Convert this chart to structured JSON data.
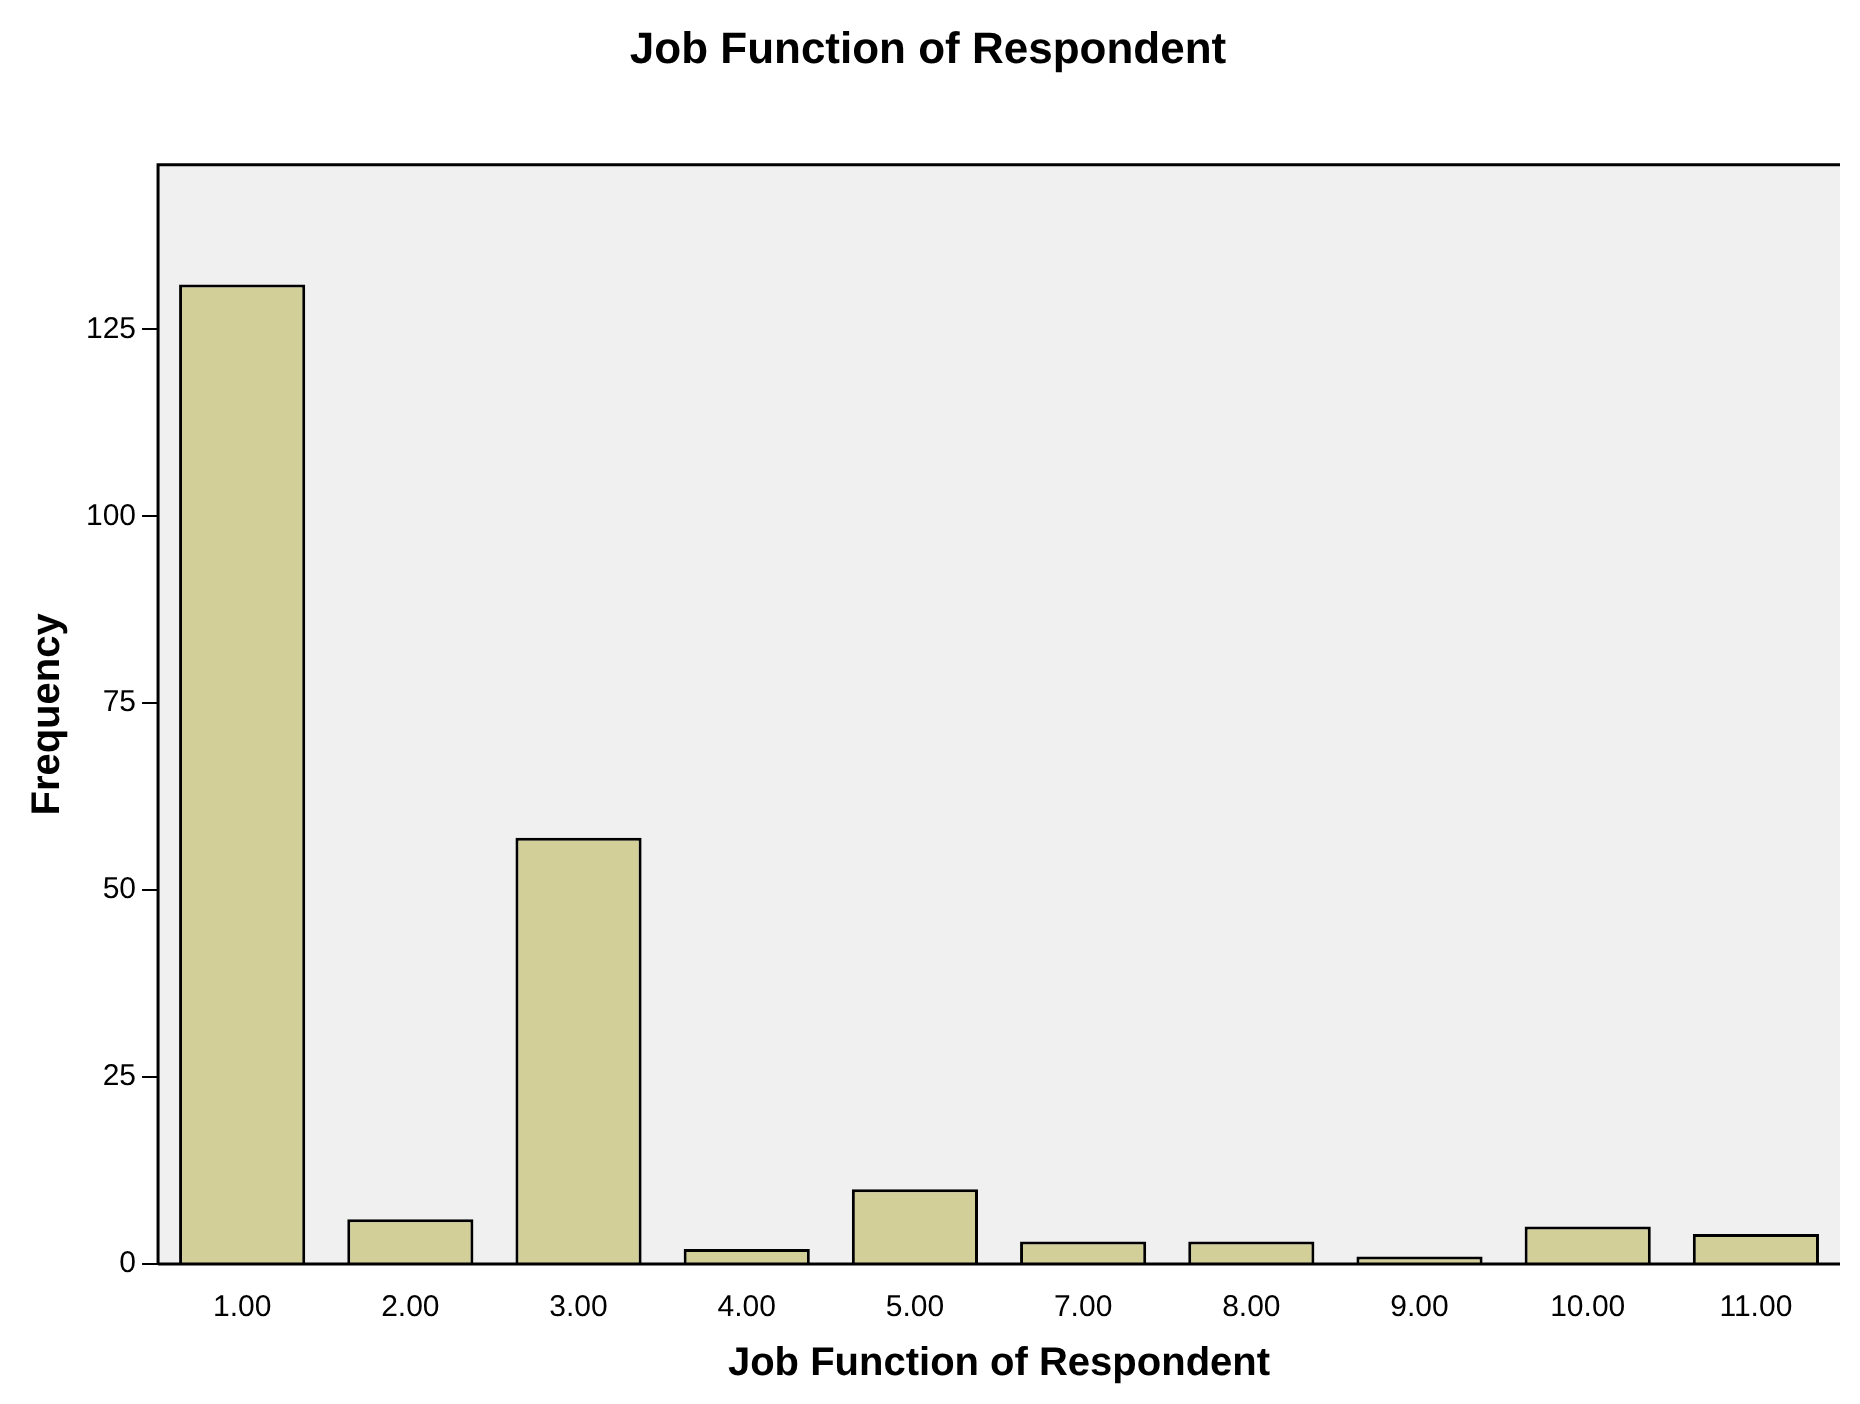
{
  "chart_data": {
    "type": "bar",
    "title": "Job Function of Respondent",
    "xlabel": "Job Function of Respondent",
    "ylabel": "Frequency",
    "categories": [
      "1.00",
      "2.00",
      "3.00",
      "4.00",
      "5.00",
      "7.00",
      "8.00",
      "9.00",
      "10.00",
      "11.00"
    ],
    "values": [
      131,
      6,
      57,
      2,
      10,
      3,
      3,
      1,
      5,
      4
    ],
    "color": "#d3cf98",
    "ylim": [
      0,
      147
    ],
    "yticks": [
      0,
      25,
      50,
      75,
      100,
      125
    ],
    "grid": false,
    "legend": false
  }
}
